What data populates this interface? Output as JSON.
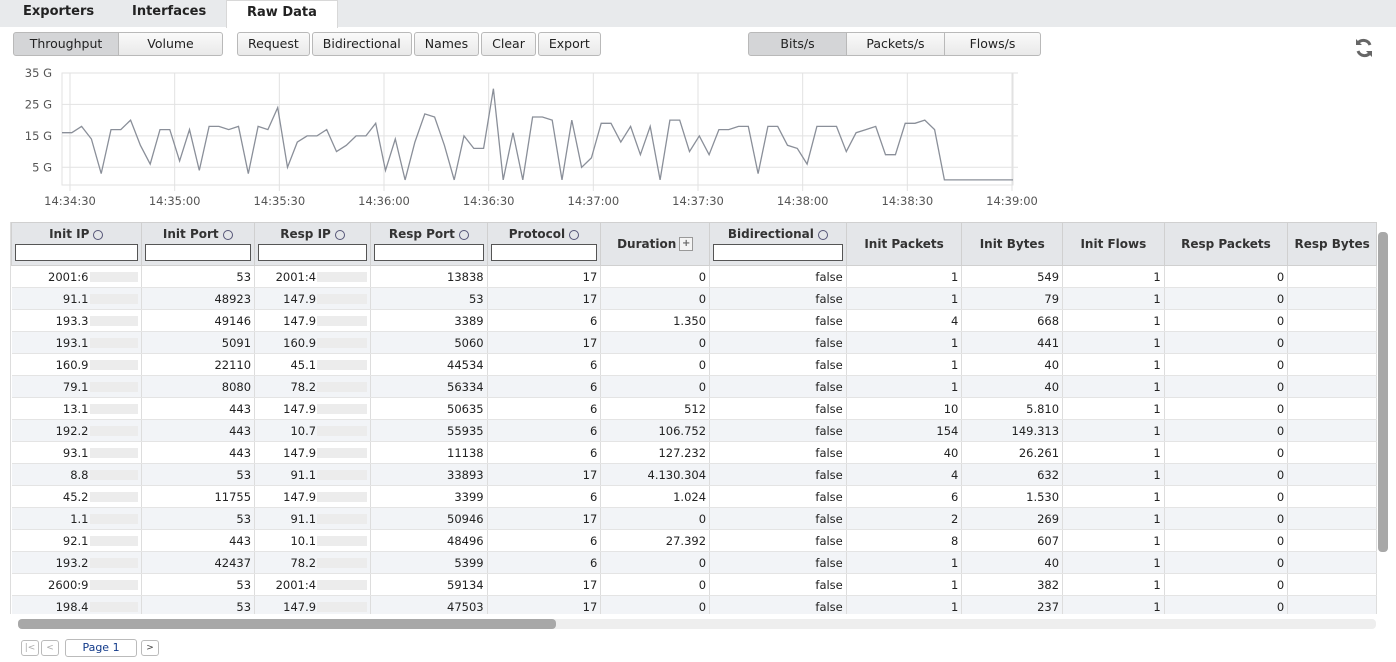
{
  "tabs": [
    "Exporters",
    "Interfaces",
    "Raw Data"
  ],
  "toolbar": {
    "view_buttons": [
      "Throughput",
      "Volume"
    ],
    "action_buttons": [
      "Request",
      "Bidirectional",
      "Names",
      "Clear",
      "Export"
    ],
    "unit_buttons": [
      "Bits/s",
      "Packets/s",
      "Flows/s"
    ]
  },
  "chart_data": {
    "type": "line",
    "color": "#8a8f99",
    "grid": true,
    "values": [
      16,
      16,
      18,
      14,
      3,
      17,
      17,
      20,
      12,
      6,
      17,
      17,
      7,
      17,
      4,
      18,
      18,
      17,
      18,
      3,
      18,
      17,
      24,
      5,
      13,
      15,
      15,
      17,
      10,
      12,
      15,
      15,
      19,
      4,
      14,
      1,
      13,
      22,
      21,
      12,
      1,
      15,
      11,
      11,
      30,
      1,
      16,
      1,
      21,
      21,
      20,
      1,
      20,
      5,
      8,
      19,
      19,
      13,
      18,
      9,
      18,
      1,
      20,
      20,
      10,
      15,
      9,
      17,
      17,
      18,
      18,
      3,
      18,
      18,
      12,
      11,
      6,
      18,
      18,
      18,
      10,
      16,
      17,
      18,
      9,
      9,
      19,
      19,
      20,
      17,
      1,
      1,
      1,
      1,
      1,
      1,
      1,
      1
    ],
    "xticks": [
      "14:34:30",
      "14:35:00",
      "14:35:30",
      "14:36:00",
      "14:36:30",
      "14:37:00",
      "14:37:30",
      "14:38:00",
      "14:38:30",
      "14:39:00"
    ],
    "ylim": [
      0,
      35
    ],
    "yticks": [
      {
        "value": 5,
        "label": "5 G"
      },
      {
        "value": 15,
        "label": "15 G"
      },
      {
        "value": 25,
        "label": "25 G"
      },
      {
        "value": 35,
        "label": "35 G"
      }
    ]
  },
  "table": {
    "columns": [
      "Init IP",
      "Init Port",
      "Resp IP",
      "Resp Port",
      "Protocol",
      "Duration",
      "Bidirectional",
      "Init Packets",
      "Init Bytes",
      "Init Flows",
      "Resp Packets",
      "Resp Bytes"
    ],
    "rows": [
      [
        "2001:6",
        "53",
        "2001:4",
        "13838",
        "17",
        "0",
        "false",
        "1",
        "549",
        "1",
        "0"
      ],
      [
        "91.1",
        "48923",
        "147.9",
        "53",
        "17",
        "0",
        "false",
        "1",
        "79",
        "1",
        "0"
      ],
      [
        "193.3",
        "49146",
        "147.9",
        "3389",
        "6",
        "1.350",
        "false",
        "4",
        "668",
        "1",
        "0"
      ],
      [
        "193.1",
        "5091",
        "160.9",
        "5060",
        "17",
        "0",
        "false",
        "1",
        "441",
        "1",
        "0"
      ],
      [
        "160.9",
        "22110",
        "45.1",
        "44534",
        "6",
        "0",
        "false",
        "1",
        "40",
        "1",
        "0"
      ],
      [
        "79.1",
        "8080",
        "78.2",
        "56334",
        "6",
        "0",
        "false",
        "1",
        "40",
        "1",
        "0"
      ],
      [
        "13.1",
        "443",
        "147.9",
        "50635",
        "6",
        "512",
        "false",
        "10",
        "5.810",
        "1",
        "0"
      ],
      [
        "192.2",
        "443",
        "10.7",
        "55935",
        "6",
        "106.752",
        "false",
        "154",
        "149.313",
        "1",
        "0"
      ],
      [
        "93.1",
        "443",
        "147.9",
        "11138",
        "6",
        "127.232",
        "false",
        "40",
        "26.261",
        "1",
        "0"
      ],
      [
        "8.8",
        "53",
        "91.1",
        "33893",
        "17",
        "4.130.304",
        "false",
        "4",
        "632",
        "1",
        "0"
      ],
      [
        "45.2",
        "11755",
        "147.9",
        "3399",
        "6",
        "1.024",
        "false",
        "6",
        "1.530",
        "1",
        "0"
      ],
      [
        "1.1",
        "53",
        "91.1",
        "50946",
        "17",
        "0",
        "false",
        "2",
        "269",
        "1",
        "0"
      ],
      [
        "92.1",
        "443",
        "10.1",
        "48496",
        "6",
        "27.392",
        "false",
        "8",
        "607",
        "1",
        "0"
      ],
      [
        "193.2",
        "42437",
        "78.2",
        "5399",
        "6",
        "0",
        "false",
        "1",
        "40",
        "1",
        "0"
      ],
      [
        "2600:9",
        "53",
        "2001:4",
        "59134",
        "17",
        "0",
        "false",
        "1",
        "382",
        "1",
        "0"
      ],
      [
        "198.4",
        "53",
        "147.9",
        "47503",
        "17",
        "0",
        "false",
        "1",
        "237",
        "1",
        "0"
      ]
    ]
  },
  "pager": {
    "page_label": "Page 1"
  }
}
